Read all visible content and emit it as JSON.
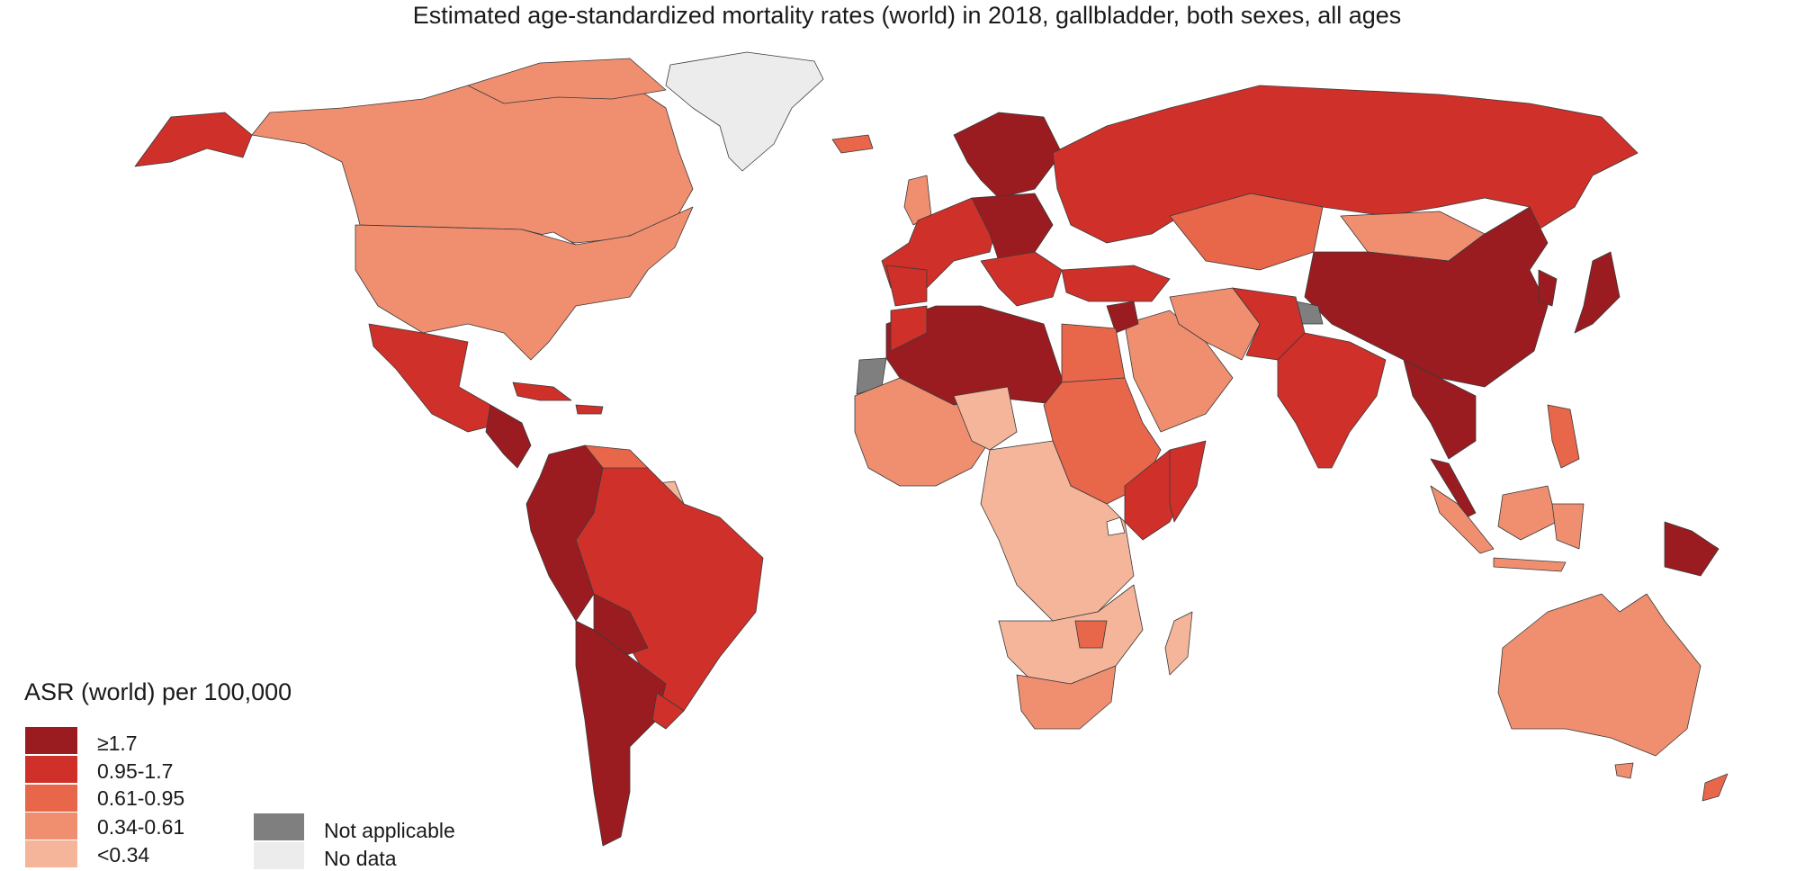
{
  "title": "Estimated age-standardized mortality rates (world) in 2018, gallbladder, both sexes, all ages",
  "legend": {
    "title": "ASR (world) per 100,000",
    "classes": [
      {
        "label": "≥1.7",
        "color": "#9b1c20"
      },
      {
        "label": "0.95-1.7",
        "color": "#d0302a"
      },
      {
        "label": "0.61-0.95",
        "color": "#e8664a"
      },
      {
        "label": "0.34-0.61",
        "color": "#ef8f70"
      },
      {
        "label": "<0.34",
        "color": "#f4b59a"
      }
    ],
    "special": [
      {
        "label": "Not applicable",
        "color": "#7f7f7f"
      },
      {
        "label": "No data",
        "color": "#ececec"
      }
    ]
  },
  "map_regions": [
    {
      "region": "Alaska",
      "class": "0.95-1.7"
    },
    {
      "region": "Canada",
      "class": "0.34-0.61"
    },
    {
      "region": "United States",
      "class": "0.34-0.61"
    },
    {
      "region": "Greenland",
      "class": "No data"
    },
    {
      "region": "Mexico",
      "class": "0.95-1.7"
    },
    {
      "region": "Central America",
      "class": "≥1.7"
    },
    {
      "region": "Colombia / Ecuador / Peru",
      "class": "≥1.7"
    },
    {
      "region": "Venezuela",
      "class": "0.61-0.95"
    },
    {
      "region": "Guianas",
      "class": "<0.34"
    },
    {
      "region": "Brazil",
      "class": "0.95-1.7"
    },
    {
      "region": "Bolivia",
      "class": "≥1.7"
    },
    {
      "region": "Chile / Argentina",
      "class": "≥1.7"
    },
    {
      "region": "Uruguay",
      "class": "0.95-1.7"
    },
    {
      "region": "Iceland",
      "class": "0.61-0.95"
    },
    {
      "region": "Scandinavia",
      "class": "≥1.7"
    },
    {
      "region": "Western Europe",
      "class": "0.95-1.7"
    },
    {
      "region": "Central Europe",
      "class": "≥1.7"
    },
    {
      "region": "Russia",
      "class": "0.95-1.7"
    },
    {
      "region": "Kazakhstan",
      "class": "0.61-0.95"
    },
    {
      "region": "Mongolia",
      "class": "0.34-0.61"
    },
    {
      "region": "China",
      "class": "≥1.7"
    },
    {
      "region": "Japan / Korea",
      "class": "≥1.7"
    },
    {
      "region": "India",
      "class": "0.95-1.7"
    },
    {
      "region": "Southeast Asia",
      "class": "≥1.7"
    },
    {
      "region": "Middle East",
      "class": "0.34-0.61"
    },
    {
      "region": "Iran",
      "class": "0.34-0.61"
    },
    {
      "region": "Pakistan / Afghanistan",
      "class": "0.95-1.7"
    },
    {
      "region": "Kashmir",
      "class": "Not applicable"
    },
    {
      "region": "Western Sahara",
      "class": "Not applicable"
    },
    {
      "region": "North Africa",
      "class": "≥1.7"
    },
    {
      "region": "Egypt",
      "class": "0.61-0.95"
    },
    {
      "region": "West Africa",
      "class": "0.34-0.61"
    },
    {
      "region": "Central Africa",
      "class": "<0.34"
    },
    {
      "region": "East Africa",
      "class": "0.61-0.95"
    },
    {
      "region": "Kenya",
      "class": "0.95-1.7"
    },
    {
      "region": "Southern Africa",
      "class": "<0.34"
    },
    {
      "region": "Zimbabwe",
      "class": "0.61-0.95"
    },
    {
      "region": "South Africa",
      "class": "0.34-0.61"
    },
    {
      "region": "Madagascar",
      "class": "<0.34"
    },
    {
      "region": "Indonesia",
      "class": "0.34-0.61"
    },
    {
      "region": "Papua New Guinea",
      "class": "≥1.7"
    },
    {
      "region": "Australia",
      "class": "0.34-0.61"
    },
    {
      "region": "New Zealand",
      "class": "0.61-0.95"
    }
  ]
}
